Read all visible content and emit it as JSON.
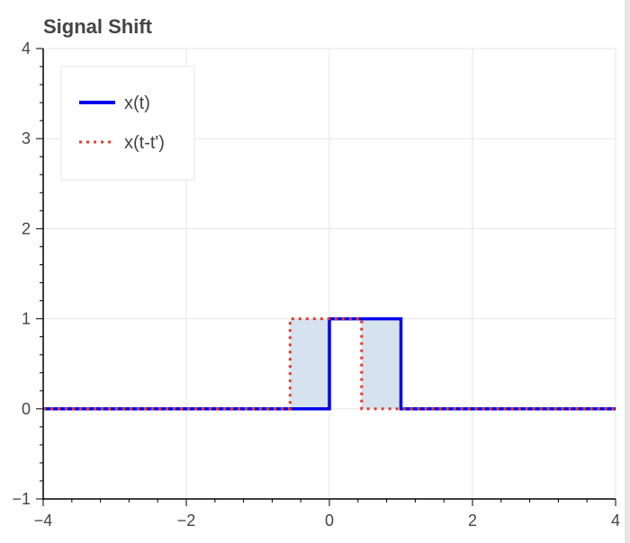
{
  "chart_data": {
    "type": "line",
    "title": "Signal Shift",
    "xlabel": "",
    "ylabel": "",
    "xlim": [
      -4,
      4
    ],
    "ylim": [
      -1,
      4
    ],
    "x_ticks": [
      -4,
      -2,
      0,
      2,
      4
    ],
    "x_tick_labels": [
      "−4",
      "−2",
      "0",
      "2",
      "4"
    ],
    "y_ticks": [
      -1,
      0,
      1,
      2,
      3,
      4
    ],
    "y_tick_labels": [
      "−1",
      "0",
      "1",
      "2",
      "3",
      "4"
    ],
    "grid": true,
    "legend_position": "top-left",
    "series": [
      {
        "name": "x(t)",
        "color": "#0000ee",
        "style": "solid",
        "x": [
          -4,
          0,
          0,
          1,
          1,
          4
        ],
        "y": [
          0,
          0,
          1,
          1,
          0,
          0
        ]
      },
      {
        "name": "x(t-t')",
        "color": "#e03c31",
        "style": "dotted",
        "x": [
          -4,
          -0.55,
          -0.55,
          0.45,
          0.45,
          4
        ],
        "y": [
          0,
          0,
          1,
          1,
          0,
          0
        ]
      }
    ],
    "shaded_regions": [
      {
        "x0": -0.55,
        "x1": 0,
        "y0": 0,
        "y1": 1,
        "color": "#d6e2ed"
      },
      {
        "x0": 0.45,
        "x1": 1,
        "y0": 0,
        "y1": 1,
        "color": "#d6e2ed"
      }
    ]
  }
}
